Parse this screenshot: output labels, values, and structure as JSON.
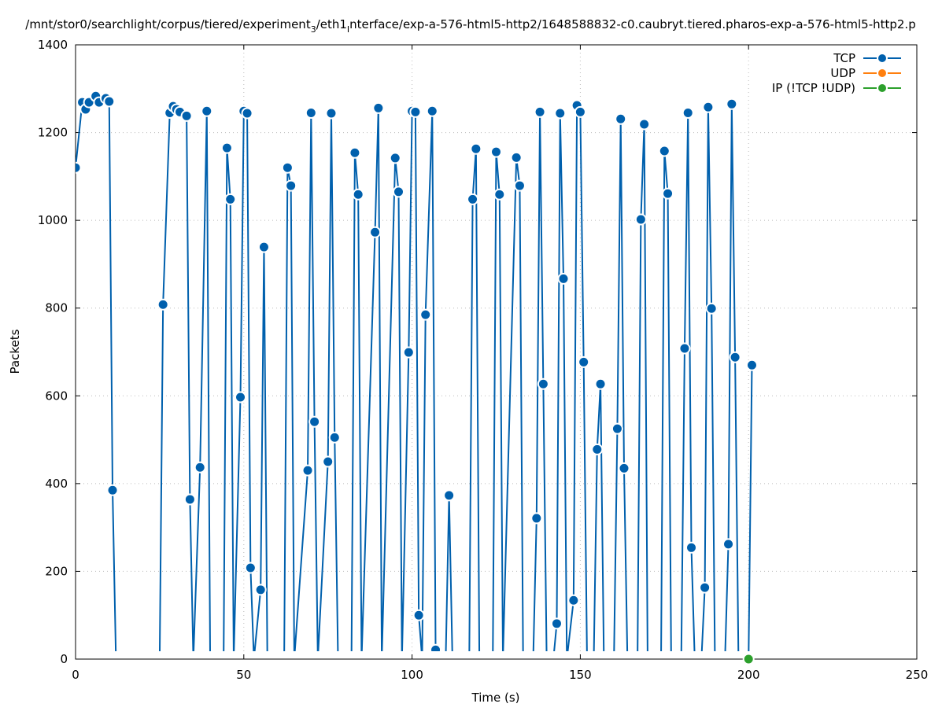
{
  "chart_data": {
    "type": "line",
    "title_parts": [
      "/mnt/stor0/searchlight/corpus/tiered/experiment",
      "3",
      "/eth1",
      "I",
      "nterface/exp-a-576-html5-http2/1648588832-c0.caubryt.tiered.pharos-exp-a-576-html5-http2.p"
    ],
    "xlabel": "Time (s)",
    "ylabel": "Packets",
    "xlim": [
      0,
      250
    ],
    "ylim": [
      0,
      1400
    ],
    "xticks": [
      0,
      50,
      100,
      150,
      200,
      250
    ],
    "yticks": [
      0,
      200,
      400,
      600,
      800,
      1000,
      1200,
      1400
    ],
    "grid": true,
    "legend_placement": "top-right",
    "series": [
      {
        "name": "TCP",
        "color": "#0060ad",
        "points": [
          [
            0,
            1120
          ],
          [
            2,
            1269
          ],
          [
            3,
            1253
          ],
          [
            4,
            1269
          ],
          [
            6,
            1283
          ],
          [
            7,
            1269
          ],
          [
            9,
            1278
          ],
          [
            10,
            1271
          ],
          [
            11,
            385
          ],
          [
            12,
            0
          ],
          [
            25,
            0
          ],
          [
            26,
            808
          ],
          [
            28,
            1245
          ],
          [
            29,
            1260
          ],
          [
            30,
            1253
          ],
          [
            31,
            1247
          ],
          [
            33,
            1238
          ],
          [
            34,
            364
          ],
          [
            35,
            0
          ],
          [
            37,
            437
          ],
          [
            39,
            1249
          ],
          [
            40,
            0
          ],
          [
            44,
            0
          ],
          [
            45,
            1165
          ],
          [
            46,
            1048
          ],
          [
            47,
            0
          ],
          [
            49,
            597
          ],
          [
            50,
            1249
          ],
          [
            51,
            1244
          ],
          [
            52,
            208
          ],
          [
            53,
            0
          ],
          [
            55,
            158
          ],
          [
            56,
            939
          ],
          [
            57,
            0
          ],
          [
            62,
            0
          ],
          [
            63,
            1120
          ],
          [
            64,
            1079
          ],
          [
            65,
            0
          ],
          [
            69,
            430
          ],
          [
            70,
            1245
          ],
          [
            71,
            541
          ],
          [
            72,
            0
          ],
          [
            75,
            450
          ],
          [
            76,
            1244
          ],
          [
            77,
            505
          ],
          [
            78,
            0
          ],
          [
            82,
            0
          ],
          [
            83,
            1154
          ],
          [
            84,
            1059
          ],
          [
            85,
            0
          ],
          [
            89,
            973
          ],
          [
            90,
            1256
          ],
          [
            91,
            0
          ],
          [
            95,
            1142
          ],
          [
            96,
            1065
          ],
          [
            97,
            0
          ],
          [
            99,
            699
          ],
          [
            100,
            1249
          ],
          [
            101,
            1247
          ],
          [
            102,
            100
          ],
          [
            103,
            0
          ],
          [
            104,
            785
          ],
          [
            106,
            1249
          ],
          [
            107,
            21
          ],
          [
            108,
            0
          ],
          [
            110,
            0
          ],
          [
            111,
            373
          ],
          [
            112,
            0
          ],
          [
            117,
            0
          ],
          [
            118,
            1048
          ],
          [
            119,
            1163
          ],
          [
            120,
            0
          ],
          [
            124,
            0
          ],
          [
            125,
            1156
          ],
          [
            126,
            1059
          ],
          [
            127,
            0
          ],
          [
            131,
            1143
          ],
          [
            132,
            1079
          ],
          [
            133,
            0
          ],
          [
            136,
            0
          ],
          [
            137,
            321
          ],
          [
            138,
            1247
          ],
          [
            139,
            627
          ],
          [
            140,
            0
          ],
          [
            142,
            0
          ],
          [
            143,
            81
          ],
          [
            144,
            1244
          ],
          [
            145,
            867
          ],
          [
            146,
            0
          ],
          [
            148,
            134
          ],
          [
            149,
            1262
          ],
          [
            150,
            1247
          ],
          [
            151,
            677
          ],
          [
            152,
            0
          ],
          [
            154,
            0
          ],
          [
            155,
            478
          ],
          [
            156,
            627
          ],
          [
            157,
            0
          ],
          [
            160,
            0
          ],
          [
            161,
            525
          ],
          [
            162,
            1231
          ],
          [
            163,
            435
          ],
          [
            164,
            0
          ],
          [
            167,
            0
          ],
          [
            168,
            1002
          ],
          [
            169,
            1219
          ],
          [
            170,
            0
          ],
          [
            174,
            0
          ],
          [
            175,
            1158
          ],
          [
            176,
            1061
          ],
          [
            177,
            0
          ],
          [
            180,
            0
          ],
          [
            181,
            708
          ],
          [
            182,
            1245
          ],
          [
            183,
            254
          ],
          [
            184,
            0
          ],
          [
            186,
            0
          ],
          [
            187,
            163
          ],
          [
            188,
            1258
          ],
          [
            189,
            799
          ],
          [
            190,
            0
          ],
          [
            193,
            0
          ],
          [
            194,
            262
          ],
          [
            195,
            1265
          ],
          [
            196,
            688
          ],
          [
            197,
            0
          ],
          [
            200,
            0
          ],
          [
            201,
            670
          ]
        ]
      },
      {
        "name": "UDP",
        "color": "#ff7f0e",
        "points": []
      },
      {
        "name": "IP (!TCP  !UDP)",
        "color": "#2ca02c",
        "points": [
          [
            0,
            0
          ],
          [
            200,
            0
          ]
        ]
      }
    ]
  }
}
